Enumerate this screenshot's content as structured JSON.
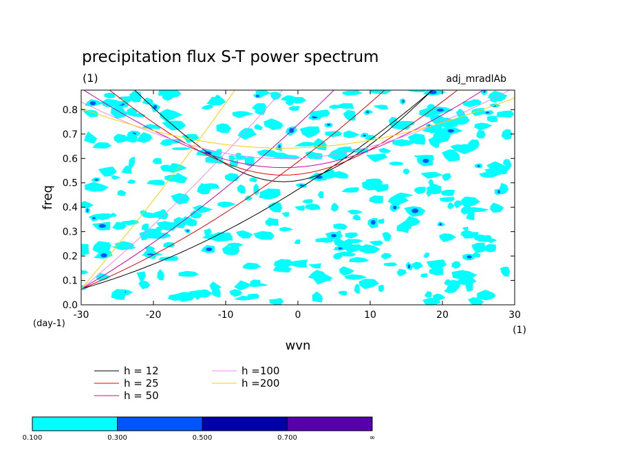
{
  "chart_data": {
    "type": "heatmap",
    "title": "precipitation flux S-T power spectrum",
    "subtitle_left": "(1)",
    "subtitle_right": "adj_mradlAb",
    "xlabel": "wvn",
    "ylabel": "freq",
    "x_unit": "(1)",
    "y_unit": "(day-1)",
    "xlim": [
      -30,
      30
    ],
    "ylim": [
      0,
      0.88
    ],
    "xticks": [
      -30,
      -20,
      -10,
      0,
      10,
      20,
      30
    ],
    "yticks": [
      0.0,
      0.1,
      0.2,
      0.3,
      0.4,
      0.5,
      0.6,
      0.7,
      0.8
    ],
    "ytick_labels": [
      "0.0",
      "0.1",
      "0.2",
      "0.3",
      "0.4",
      "0.5",
      "0.6",
      "0.7",
      "0.8"
    ],
    "shading_levels": [
      {
        "from": "0.100",
        "to": "0.300",
        "color": "#00ffff"
      },
      {
        "from": "0.300",
        "to": "0.500",
        "color": "#0055ff"
      },
      {
        "from": "0.500",
        "to": "0.700",
        "color": "#0000aa"
      },
      {
        "from": "0.700",
        "to": "∞",
        "color": "#5500aa"
      }
    ],
    "colorbar_labels": [
      "0.100",
      "0.300",
      "0.500",
      "0.700",
      "∞"
    ],
    "dispersion_curves": [
      {
        "name": "h = 12",
        "h": 12,
        "color": "#000000"
      },
      {
        "name": "h = 25",
        "h": 25,
        "color": "#e00000"
      },
      {
        "name": "h = 50",
        "h": 50,
        "color": "#cc00aa"
      },
      {
        "name": "h =100",
        "h": 100,
        "color": "#ee88ee"
      },
      {
        "name": "h =200",
        "h": 200,
        "color": "#ffcc00"
      }
    ],
    "grid": false,
    "legend_position": "bottom-left"
  }
}
